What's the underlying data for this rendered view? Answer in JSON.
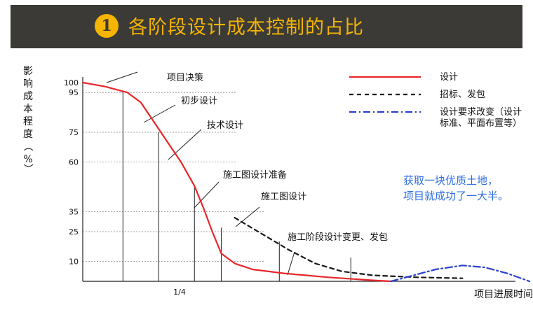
{
  "header": {
    "badge_number": "1",
    "title": "各阶段设计成本控制的占比"
  },
  "note": {
    "line1": "获取一块优质土地，",
    "line2": "项目就成功了一大半。"
  },
  "colors": {
    "banner_bg": "#3b3a36",
    "accent": "#f4b400",
    "design_curve": "#e8262a",
    "bidding_curve": "#1a1a1a",
    "change_curve": "#2a3fd0",
    "note_text": "#2f6fe0"
  },
  "chart_data": {
    "type": "line",
    "title": "",
    "ylabel": "影响成本程度（%）",
    "xlabel": "项目进展时间",
    "ylim": [
      0,
      100
    ],
    "yticks": [
      10,
      25,
      35,
      60,
      75,
      95,
      100
    ],
    "xtick_labels": [
      "1/4"
    ],
    "legend_position": "top-right",
    "series": [
      {
        "name": "设计",
        "style": "solid",
        "color": "#e8262a",
        "points": [
          [
            0.0,
            100
          ],
          [
            0.05,
            98
          ],
          [
            0.1,
            95
          ],
          [
            0.13,
            90
          ],
          [
            0.16,
            80
          ],
          [
            0.19,
            70
          ],
          [
            0.22,
            60
          ],
          [
            0.25,
            48
          ],
          [
            0.27,
            37
          ],
          [
            0.29,
            25
          ],
          [
            0.31,
            14
          ],
          [
            0.34,
            9
          ],
          [
            0.38,
            6
          ],
          [
            0.45,
            4
          ],
          [
            0.55,
            2
          ],
          [
            0.65,
            0.5
          ],
          [
            0.69,
            0
          ]
        ]
      },
      {
        "name": "招标、发包",
        "style": "dashed",
        "color": "#1a1a1a",
        "points": [
          [
            0.34,
            32
          ],
          [
            0.4,
            24
          ],
          [
            0.46,
            16
          ],
          [
            0.52,
            9
          ],
          [
            0.58,
            5
          ],
          [
            0.65,
            3
          ],
          [
            0.75,
            2
          ],
          [
            0.85,
            1.5
          ]
        ]
      },
      {
        "name": "设计要求改变（设计标准、平面布置等）",
        "style": "dash-dot",
        "color": "#2a3fd0",
        "points": [
          [
            0.69,
            0
          ],
          [
            0.74,
            3
          ],
          [
            0.79,
            6
          ],
          [
            0.85,
            8
          ],
          [
            0.9,
            7
          ],
          [
            0.95,
            4
          ],
          [
            1.0,
            0
          ]
        ]
      }
    ],
    "stage_markers": [
      {
        "label": "项目决策",
        "x": 0.09
      },
      {
        "label": "初步设计",
        "x": 0.17
      },
      {
        "label": "技术设计",
        "x": 0.25
      },
      {
        "label": "施工图设计准备",
        "x": 0.31
      },
      {
        "label": "施工图设计",
        "x": 0.44
      },
      {
        "label": "施工阶段设计变更、发包",
        "x": 0.6
      }
    ]
  }
}
